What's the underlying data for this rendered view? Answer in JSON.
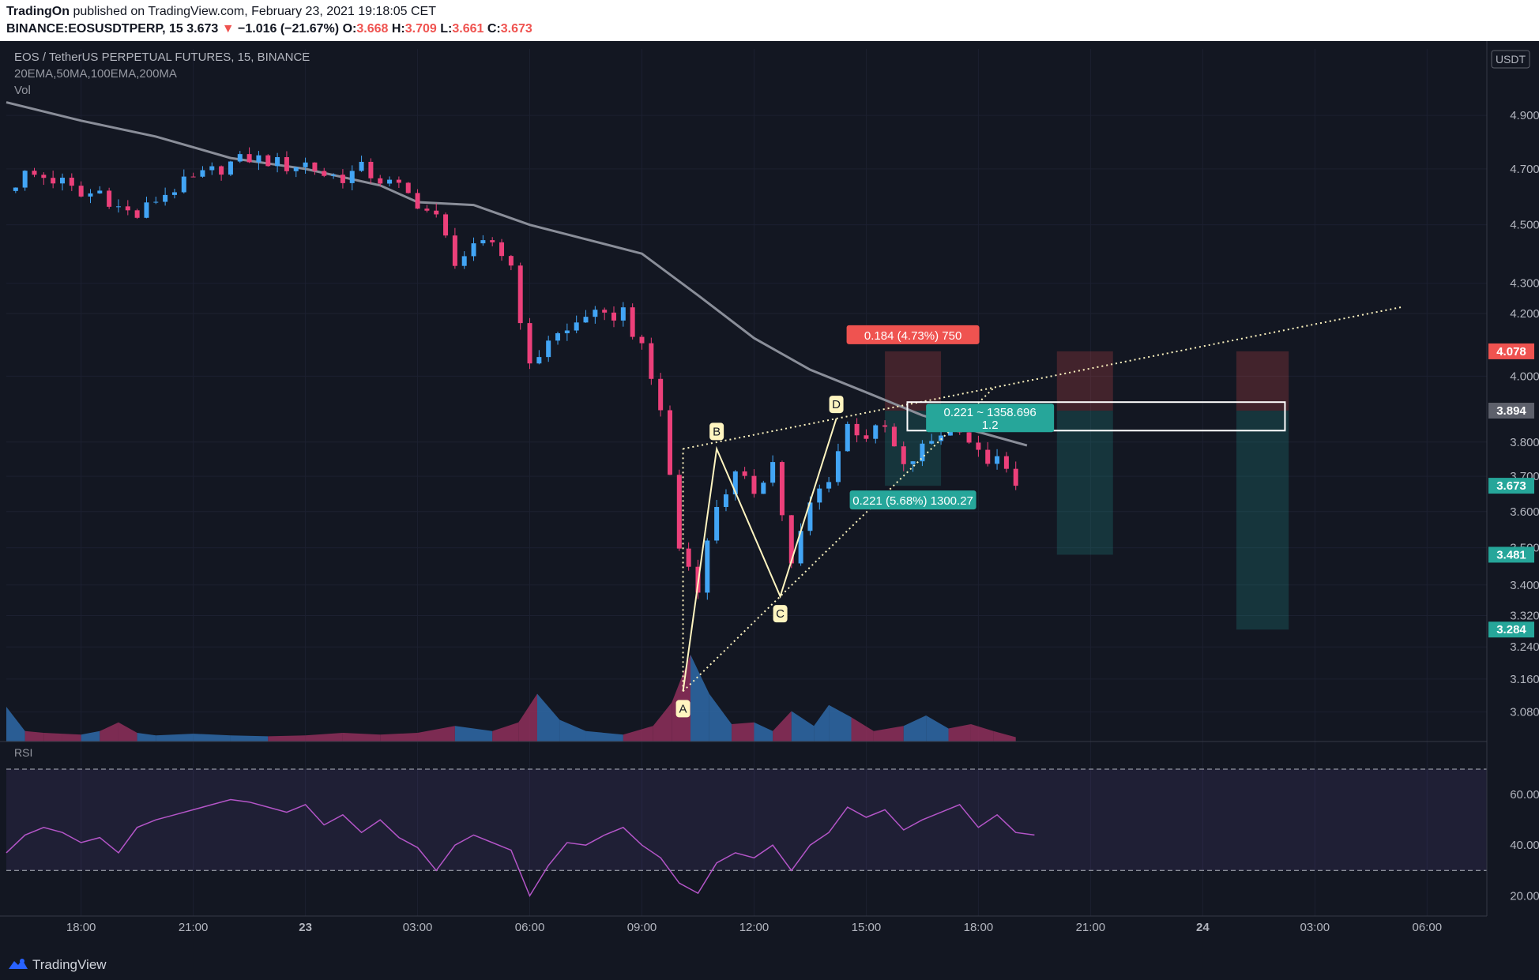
{
  "header": {
    "author": "TradingOn",
    "published_text": "published on TradingView.com, February 23, 2021 19:18:05 CET",
    "symbol": "BINANCE:EOSUSDTPERP, 15",
    "last": "3.673",
    "change_arrow": "▼",
    "change": "−1.016 (−21.67%)",
    "o_label": "O:",
    "o_value": "3.668",
    "h_label": "H:",
    "h_value": "3.709",
    "l_label": "L:",
    "l_value": "3.661",
    "c_label": "C:",
    "c_value": "3.673"
  },
  "legend": {
    "title": "EOS / TetherUS PERPETUAL FUTURES, 15, BINANCE",
    "indicators": "20EMA,50MA,100EMA,200MA",
    "volume": "Vol"
  },
  "rsi_label": "RSI",
  "currency": "USDT",
  "footer": {
    "brand": "TradingView"
  },
  "colors": {
    "background": "#131722",
    "up": "#42a5f5",
    "down": "#ec407a",
    "ma": "#8a8e99",
    "rsi": "#b455c8",
    "pattern": "#fff5c0",
    "target": "#26a69a",
    "stop": "#ef5350"
  },
  "pattern_labels": [
    "A",
    "B",
    "C",
    "D"
  ],
  "positions": {
    "stop_label": "0.184 (4.73%) 750",
    "target_label": "0.221 (5.68%) 1300.27",
    "measure_line1": "0.221 ~ 1358.696",
    "measure_line2": "1.2"
  },
  "price_badges": [
    {
      "value": "4.078",
      "color": "#ef5350"
    },
    {
      "value": "3.894",
      "color": "#5d606b"
    },
    {
      "value": "3.673",
      "color": "#26a69a"
    },
    {
      "value": "3.481",
      "color": "#26a69a"
    },
    {
      "value": "3.284",
      "color": "#26a69a"
    }
  ],
  "chart_data": {
    "type": "candlestick",
    "title": "EOS / TetherUS PERPETUAL FUTURES, 15, BINANCE",
    "price_axis": {
      "scale": "log",
      "ticks": [
        "4.900",
        "4.700",
        "4.500",
        "4.300",
        "4.200",
        "4.000",
        "3.800",
        "3.700",
        "3.600",
        "3.500",
        "3.400",
        "3.320",
        "3.240",
        "3.160",
        "3.080"
      ],
      "range": [
        3.01,
        5.16
      ]
    },
    "time_axis": {
      "ticks": [
        "18:00",
        "21:00",
        "23",
        "03:00",
        "06:00",
        "09:00",
        "12:00",
        "15:00",
        "18:00",
        "21:00",
        "24",
        "03:00",
        "06:00"
      ],
      "tick_hours": [
        18,
        21,
        24,
        27,
        30,
        33,
        36,
        39,
        42,
        45,
        48,
        51,
        54
      ],
      "range_hours": [
        16.0,
        55.6
      ]
    },
    "rsi": {
      "ticks": [
        "60.00",
        "40.00",
        "20.00"
      ],
      "tick_values": [
        60,
        40,
        20
      ],
      "range": [
        12,
        80
      ],
      "overbought": 70,
      "oversold": 30
    },
    "close_path": [
      [
        16.0,
        4.62
      ],
      [
        16.5,
        4.68
      ],
      [
        17.0,
        4.67
      ],
      [
        17.5,
        4.65
      ],
      [
        18.0,
        4.6
      ],
      [
        18.5,
        4.62
      ],
      [
        19.0,
        4.56
      ],
      [
        19.5,
        4.53
      ],
      [
        20.0,
        4.59
      ],
      [
        20.5,
        4.63
      ],
      [
        21.0,
        4.66
      ],
      [
        21.5,
        4.69
      ],
      [
        22.0,
        4.72
      ],
      [
        22.5,
        4.74
      ],
      [
        23.0,
        4.73
      ],
      [
        23.5,
        4.71
      ],
      [
        24.0,
        4.72
      ],
      [
        24.5,
        4.68
      ],
      [
        25.0,
        4.67
      ],
      [
        25.5,
        4.7
      ],
      [
        26.0,
        4.66
      ],
      [
        26.5,
        4.63
      ],
      [
        27.0,
        4.58
      ],
      [
        27.5,
        4.52
      ],
      [
        28.0,
        4.38
      ],
      [
        28.5,
        4.41
      ],
      [
        29.0,
        4.44
      ],
      [
        29.5,
        4.36
      ],
      [
        30.0,
        4.02
      ],
      [
        30.5,
        4.12
      ],
      [
        31.0,
        4.14
      ],
      [
        31.5,
        4.2
      ],
      [
        32.0,
        4.18
      ],
      [
        32.5,
        4.21
      ],
      [
        33.0,
        4.08
      ],
      [
        33.5,
        3.9
      ],
      [
        34.0,
        3.5
      ],
      [
        34.5,
        3.4
      ],
      [
        35.0,
        3.62
      ],
      [
        35.5,
        3.7
      ],
      [
        36.0,
        3.66
      ],
      [
        36.5,
        3.74
      ],
      [
        37.0,
        3.45
      ],
      [
        37.5,
        3.62
      ],
      [
        38.0,
        3.7
      ],
      [
        38.5,
        3.85
      ],
      [
        39.0,
        3.82
      ],
      [
        39.5,
        3.84
      ],
      [
        40.0,
        3.72
      ],
      [
        40.5,
        3.78
      ],
      [
        41.0,
        3.83
      ],
      [
        41.5,
        3.85
      ],
      [
        42.0,
        3.76
      ],
      [
        42.5,
        3.74
      ],
      [
        43.0,
        3.69
      ]
    ],
    "volume_path": [
      [
        16.0,
        0.4
      ],
      [
        16.5,
        0.12
      ],
      [
        17.0,
        0.1
      ],
      [
        17.5,
        0.09
      ],
      [
        18.0,
        0.08
      ],
      [
        18.5,
        0.12
      ],
      [
        19.0,
        0.22
      ],
      [
        19.5,
        0.1
      ],
      [
        20.0,
        0.07
      ],
      [
        21.0,
        0.09
      ],
      [
        22.0,
        0.07
      ],
      [
        23.0,
        0.06
      ],
      [
        24.0,
        0.07
      ],
      [
        25.0,
        0.1
      ],
      [
        26.0,
        0.08
      ],
      [
        27.0,
        0.1
      ],
      [
        28.0,
        0.18
      ],
      [
        29.0,
        0.12
      ],
      [
        29.7,
        0.22
      ],
      [
        30.2,
        0.55
      ],
      [
        30.8,
        0.25
      ],
      [
        31.5,
        0.12
      ],
      [
        32.5,
        0.08
      ],
      [
        33.3,
        0.18
      ],
      [
        33.8,
        0.45
      ],
      [
        34.3,
        1.0
      ],
      [
        34.8,
        0.55
      ],
      [
        35.4,
        0.2
      ],
      [
        36.0,
        0.22
      ],
      [
        36.5,
        0.12
      ],
      [
        37.0,
        0.35
      ],
      [
        37.6,
        0.18
      ],
      [
        38.0,
        0.42
      ],
      [
        38.6,
        0.28
      ],
      [
        39.2,
        0.12
      ],
      [
        40.0,
        0.18
      ],
      [
        40.6,
        0.3
      ],
      [
        41.2,
        0.15
      ],
      [
        41.8,
        0.2
      ],
      [
        42.4,
        0.12
      ],
      [
        43.0,
        0.05
      ]
    ],
    "ma_200": [
      [
        16.0,
        4.95
      ],
      [
        18.0,
        4.88
      ],
      [
        20.0,
        4.82
      ],
      [
        22.0,
        4.74
      ],
      [
        24.0,
        4.7
      ],
      [
        26.0,
        4.64
      ],
      [
        27.0,
        4.58
      ],
      [
        28.5,
        4.57
      ],
      [
        30.0,
        4.5
      ],
      [
        31.5,
        4.45
      ],
      [
        33.0,
        4.4
      ],
      [
        34.5,
        4.26
      ],
      [
        36.0,
        4.12
      ],
      [
        37.5,
        4.02
      ],
      [
        39.0,
        3.95
      ],
      [
        40.5,
        3.88
      ],
      [
        42.0,
        3.83
      ],
      [
        43.3,
        3.79
      ]
    ],
    "rsi_path": [
      [
        16.0,
        37
      ],
      [
        16.5,
        44
      ],
      [
        17.0,
        47
      ],
      [
        17.5,
        45
      ],
      [
        18.0,
        41
      ],
      [
        18.5,
        43
      ],
      [
        19.0,
        37
      ],
      [
        19.5,
        47
      ],
      [
        20.0,
        50
      ],
      [
        20.5,
        52
      ],
      [
        21.0,
        54
      ],
      [
        21.5,
        56
      ],
      [
        22.0,
        58
      ],
      [
        22.5,
        57
      ],
      [
        23.0,
        55
      ],
      [
        23.5,
        53
      ],
      [
        24.0,
        56
      ],
      [
        24.5,
        48
      ],
      [
        25.0,
        52
      ],
      [
        25.5,
        45
      ],
      [
        26.0,
        50
      ],
      [
        26.5,
        43
      ],
      [
        27.0,
        39
      ],
      [
        27.5,
        30
      ],
      [
        28.0,
        40
      ],
      [
        28.5,
        44
      ],
      [
        29.0,
        41
      ],
      [
        29.5,
        38
      ],
      [
        30.0,
        20
      ],
      [
        30.5,
        32
      ],
      [
        31.0,
        41
      ],
      [
        31.5,
        40
      ],
      [
        32.0,
        44
      ],
      [
        32.5,
        47
      ],
      [
        33.0,
        40
      ],
      [
        33.5,
        35
      ],
      [
        34.0,
        25
      ],
      [
        34.5,
        21
      ],
      [
        35.0,
        33
      ],
      [
        35.5,
        37
      ],
      [
        36.0,
        35
      ],
      [
        36.5,
        40
      ],
      [
        37.0,
        30
      ],
      [
        37.5,
        40
      ],
      [
        38.0,
        45
      ],
      [
        38.5,
        55
      ],
      [
        39.0,
        51
      ],
      [
        39.5,
        54
      ],
      [
        40.0,
        46
      ],
      [
        40.5,
        50
      ],
      [
        41.0,
        53
      ],
      [
        41.5,
        56
      ],
      [
        42.0,
        47
      ],
      [
        42.5,
        52
      ],
      [
        43.0,
        45
      ],
      [
        43.5,
        44
      ]
    ],
    "abcd": [
      {
        "label": "A",
        "hour": 34.1,
        "price": 3.13
      },
      {
        "label": "B",
        "hour": 35.0,
        "price": 3.78
      },
      {
        "label": "C",
        "hour": 36.7,
        "price": 3.37
      },
      {
        "label": "D",
        "hour": 38.2,
        "price": 3.87
      }
    ],
    "long_positions": [
      {
        "h0": 39.5,
        "h1": 41.0,
        "entry": 3.894,
        "stop": 4.078,
        "target": 3.673
      },
      {
        "h0": 44.1,
        "h1": 45.6,
        "entry": 3.894,
        "stop": 4.078,
        "target": 3.481
      },
      {
        "h0": 48.9,
        "h1": 50.3,
        "entry": 3.894,
        "stop": 4.078,
        "target": 3.284
      }
    ],
    "measure_box": {
      "h0": 40.1,
      "h1": 50.2,
      "top": 3.92,
      "bottom": 3.834
    }
  }
}
